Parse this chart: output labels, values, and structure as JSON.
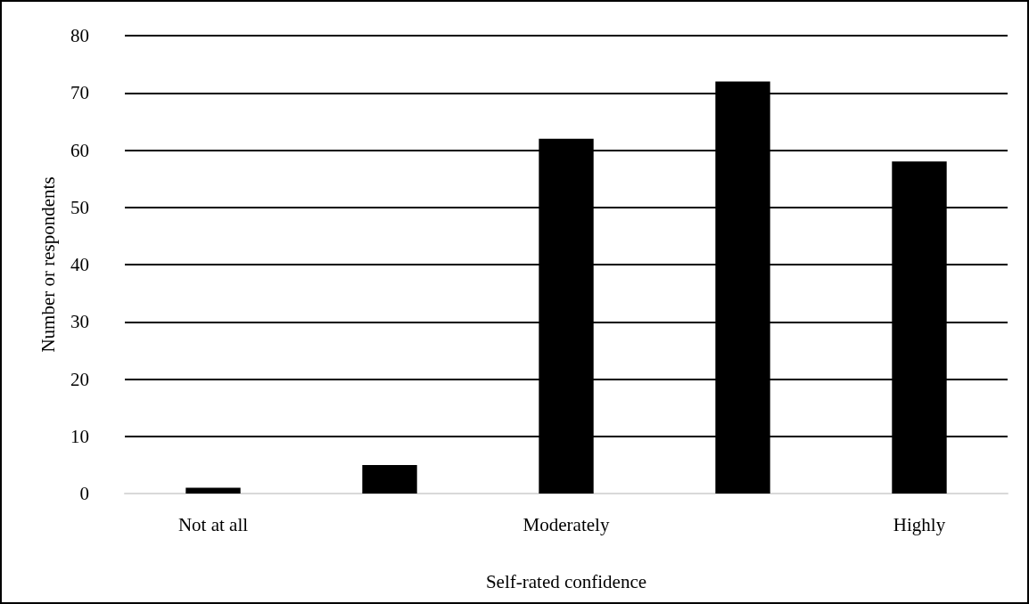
{
  "chart_data": {
    "type": "bar",
    "xlabel": "Self-rated confidence",
    "ylabel": "Number or respondents",
    "categories": [
      "Not at all",
      null,
      "Moderately",
      null,
      "Highly"
    ],
    "values": [
      1,
      5,
      62,
      72,
      58
    ],
    "color": "#000000",
    "ylim": [
      0,
      80
    ],
    "yticks": [
      0,
      10,
      20,
      30,
      40,
      50,
      60,
      70,
      80
    ],
    "grid": "y"
  }
}
